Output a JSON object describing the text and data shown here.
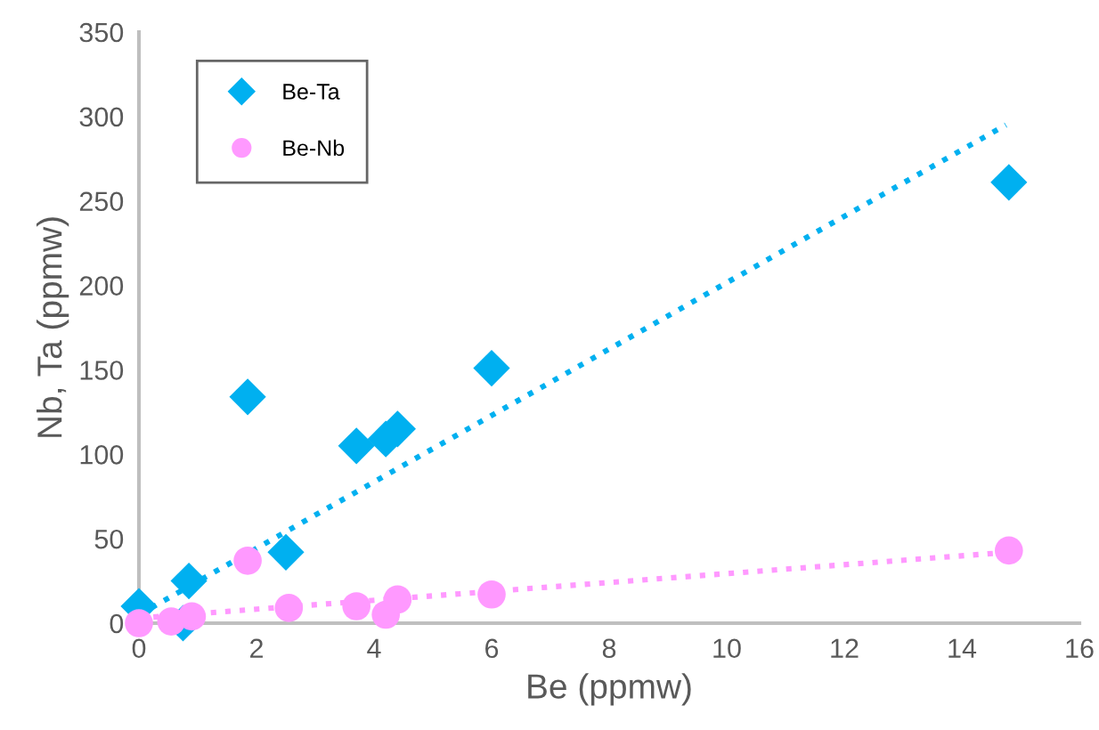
{
  "chart_data": {
    "type": "scatter",
    "xlabel": "Be (ppmw)",
    "ylabel": "Nb, Ta (ppmw)",
    "xlim": [
      0,
      16
    ],
    "xticks": [
      0,
      2,
      4,
      6,
      8,
      10,
      12,
      14,
      16
    ],
    "ylim": [
      0,
      350
    ],
    "yticks": [
      0,
      50,
      100,
      150,
      200,
      250,
      300,
      350
    ],
    "grid": false,
    "legend": "top left",
    "series": [
      {
        "name": "Be-Ta",
        "marker": "diamond",
        "color": "#00b0f0",
        "x": [
          0,
          0.75,
          0.85,
          1.85,
          2.5,
          3.7,
          4.2,
          4.4,
          6,
          14.8
        ],
        "values": [
          10,
          0,
          25,
          134,
          42,
          105,
          109,
          115,
          151,
          261
        ]
      },
      {
        "name": "Be-Nb",
        "marker": "circle",
        "color": "#ff99ff",
        "x": [
          0,
          0.55,
          0.9,
          1.85,
          2.55,
          3.7,
          4.2,
          4.4,
          6,
          14.8
        ],
        "values": [
          0,
          1,
          4,
          37,
          9,
          10,
          5,
          14,
          17,
          43
        ]
      },
      {
        "type": "line",
        "line_style": "dotted",
        "color": "#00b0f0",
        "x": [
          0,
          14.75
        ],
        "values": [
          5,
          295
        ]
      },
      {
        "type": "line",
        "line_style": "dotted",
        "color": "#ff99ff",
        "x": [
          0,
          14.8
        ],
        "values": [
          3,
          42
        ]
      }
    ]
  }
}
